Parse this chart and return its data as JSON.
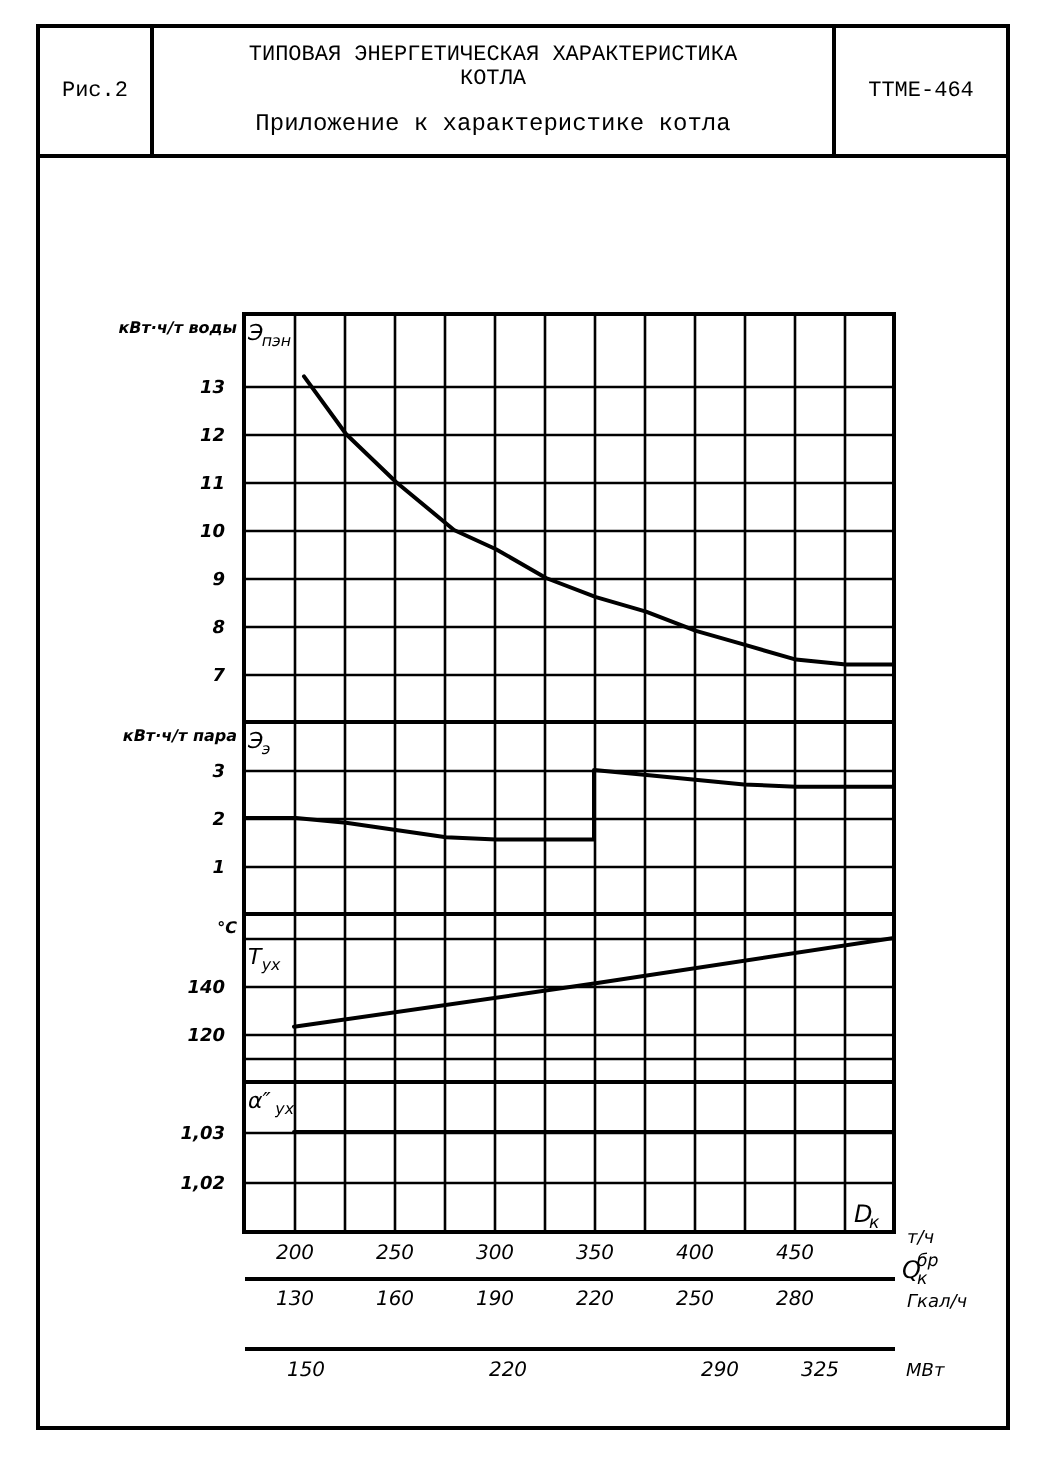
{
  "chart_data": [
    {
      "type": "line",
      "title": "ТИПОВАЯ ЭНЕРГЕТИЧЕСКАЯ ХАРАКТЕРИСТИКА КОТЛА",
      "subtitle": "Приложение к характеристике котла",
      "annotations": [
        "Рис.2",
        "ТТМЕ-464"
      ],
      "ylabel": "кВт·ч/т воды",
      "xlim": [
        175,
        500
      ],
      "xticks": [
        200,
        {
          "value": 225,
          "label": null
        },
        250,
        {
          "value": 275,
          "label": null
        },
        300,
        {
          "value": 325,
          "label": null
        },
        350,
        {
          "value": 375,
          "label": null
        },
        400,
        {
          "value": 425,
          "label": null
        },
        450,
        {
          "value": 475,
          "label": null
        }
      ],
      "ylim": [
        6,
        14.5
      ],
      "yticks": [
        7,
        8,
        9,
        10,
        11,
        12,
        13
      ],
      "grid": true,
      "tick_labels": "y",
      "line_style": "solid",
      "series": [
        {
          "name": "Э$_{пэн}$",
          "color": "#000000",
          "x": [
            205,
            226,
            251,
            280,
            301,
            326,
            351,
            376,
            401,
            426,
            451,
            476,
            500
          ],
          "values": [
            13.2,
            12,
            11,
            10,
            9.6,
            9.0,
            8.6,
            8.3,
            7.9,
            7.6,
            7.3,
            7.2,
            7.2
          ]
        }
      ]
    },
    {
      "type": "line",
      "ylabel": "кВт·ч/т пара",
      "xlim": [
        175,
        500
      ],
      "xticks": [
        200,
        {
          "value": 225,
          "label": null
        },
        250,
        {
          "value": 275,
          "label": null
        },
        300,
        {
          "value": 325,
          "label": null
        },
        350,
        {
          "value": 375,
          "label": null
        },
        400,
        {
          "value": 425,
          "label": null
        },
        450,
        {
          "value": 475,
          "label": null
        }
      ],
      "ylim": [
        0,
        4
      ],
      "yticks": [
        1,
        2,
        3
      ],
      "grid": true,
      "tick_labels": "y",
      "line_style": "solid",
      "series": [
        {
          "name": "Э$_{э}$",
          "color": "#000000",
          "x": [
            176,
            201,
            226,
            276,
            301,
            325,
            350,
            350,
            375,
            425,
            451,
            500
          ],
          "values": [
            2.0,
            2.0,
            1.9,
            1.6,
            1.55,
            1.55,
            1.55,
            3.0,
            2.9,
            2.7,
            2.65,
            2.65
          ]
        }
      ]
    },
    {
      "type": "line",
      "ylabel": "°C",
      "xlim": [
        175,
        500
      ],
      "xticks": [
        200,
        {
          "value": 225,
          "label": null
        },
        250,
        {
          "value": 275,
          "label": null
        },
        300,
        {
          "value": 325,
          "label": null
        },
        350,
        {
          "value": 375,
          "label": null
        },
        400,
        {
          "value": 425,
          "label": null
        },
        450,
        {
          "value": 475,
          "label": null
        }
      ],
      "ylim": [
        100,
        170
      ],
      "yticks": [
        {
          "value": 110,
          "label": null
        },
        120,
        140,
        {
          "value": 160,
          "label": null
        }
      ],
      "grid": true,
      "tick_labels": "y",
      "line_style": "solid",
      "series": [
        {
          "name": "T$_{ух}$",
          "color": "#000000",
          "x": [
            200,
            350,
            500
          ],
          "values": [
            123,
            141,
            160
          ]
        }
      ]
    },
    {
      "type": "line",
      "annotations": [
        "D$_{к}$",
        "Q$_{к}$$^{бр}$",
        "МВт",
        "150",
        "220",
        "290",
        "325"
      ],
      "xlabel": "т/ч",
      "x2label": "Гкал/ч",
      "xlim": [
        175,
        500
      ],
      "xticks": [
        200,
        {
          "value": 225,
          "label": null
        },
        250,
        {
          "value": 275,
          "label": null
        },
        300,
        {
          "value": 325,
          "label": null
        },
        350,
        {
          "value": 375,
          "label": null
        },
        400,
        {
          "value": 425,
          "label": null
        },
        450,
        {
          "value": 475,
          "label": null
        }
      ],
      "x2lim": [
        115,
        310
      ],
      "x2ticks": [
        130,
        160,
        190,
        220,
        250,
        280
      ],
      "ylim": [
        1.01,
        1.04
      ],
      "yticks": [
        {
          "value": 1.02,
          "label": "1,02"
        },
        {
          "value": 1.03,
          "label": "1,03"
        }
      ],
      "grid": true,
      "line_style": "solid",
      "series": [
        {
          "name": "α″$_{ух}$",
          "color": "#000000",
          "x": [
            200,
            500
          ],
          "values": [
            1.03,
            1.03
          ]
        }
      ]
    }
  ]
}
